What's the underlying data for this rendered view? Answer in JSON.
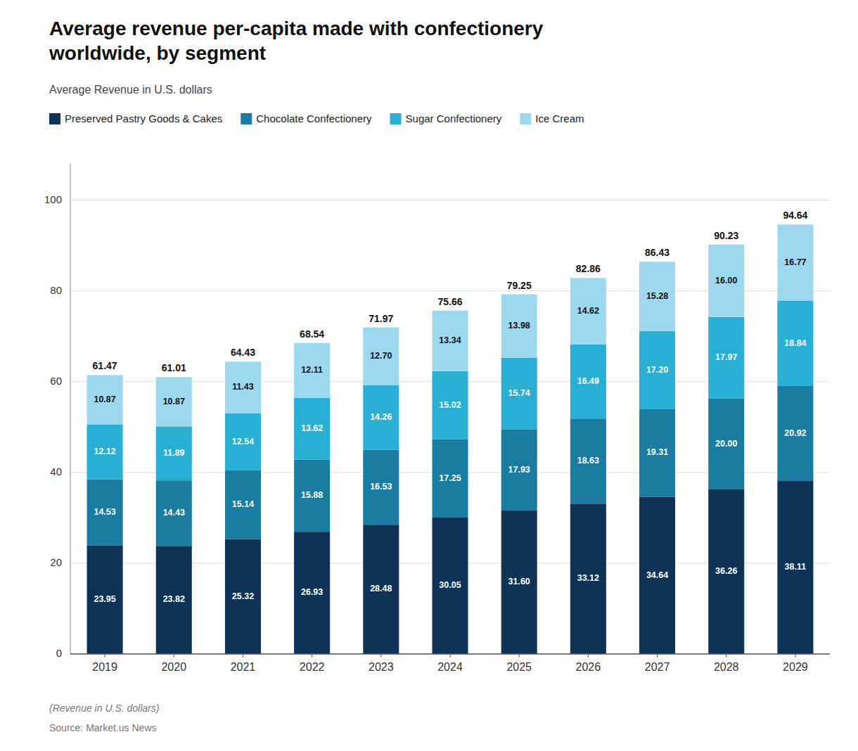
{
  "chart_data": {
    "type": "bar",
    "stacked": true,
    "data_labels": true,
    "grid": true,
    "legend": "upper left",
    "title": "Average revenue per-capita made with confectionery\nworldwide, by segment",
    "subtitle": "Average Revenue in U.S. dollars",
    "footnote": "(Revenue in U.S. dollars)",
    "source": "Source: Market.us News",
    "categories": [
      "2019",
      "2020",
      "2021",
      "2022",
      "2023",
      "2024",
      "2025",
      "2026",
      "2027",
      "2028",
      "2029"
    ],
    "series": [
      {
        "name": "Preserved Pastry Goods & Cakes",
        "color": "#0f3356",
        "values": [
          23.95,
          23.82,
          25.32,
          26.93,
          28.48,
          30.05,
          31.6,
          33.12,
          34.64,
          36.26,
          38.11
        ],
        "value_labels": [
          "23.95",
          "23.82",
          "25.32",
          "26.93",
          "28.48",
          "30.05",
          "31.60",
          "33.12",
          "34.64",
          "36.26",
          "38.11"
        ]
      },
      {
        "name": "Chocolate Confectionery",
        "color": "#1a7ca0",
        "values": [
          14.53,
          14.43,
          15.14,
          15.88,
          16.53,
          17.25,
          17.93,
          18.63,
          19.31,
          20.0,
          20.92
        ],
        "value_labels": [
          "14.53",
          "14.43",
          "15.14",
          "15.88",
          "16.53",
          "17.25",
          "17.93",
          "18.63",
          "19.31",
          "20.00",
          "20.92"
        ]
      },
      {
        "name": "Sugar Confectionery",
        "color": "#29aed4",
        "values": [
          12.12,
          11.89,
          12.54,
          13.62,
          14.26,
          15.02,
          15.74,
          16.49,
          17.2,
          17.97,
          18.84
        ],
        "value_labels": [
          "12.12",
          "11.89",
          "12.54",
          "13.62",
          "14.26",
          "15.02",
          "15.74",
          "16.49",
          "17.20",
          "17.97",
          "18.84"
        ]
      },
      {
        "name": "Ice Cream",
        "color": "#9ed8ef",
        "values": [
          10.87,
          10.87,
          11.43,
          12.11,
          12.7,
          13.34,
          13.98,
          14.62,
          15.28,
          16.0,
          16.77
        ],
        "value_labels": [
          "10.87",
          "10.87",
          "11.43",
          "12.11",
          "12.70",
          "13.34",
          "13.98",
          "14.62",
          "15.28",
          "16.00",
          "16.77"
        ]
      }
    ],
    "totals": [
      61.47,
      61.01,
      64.43,
      68.54,
      71.97,
      75.66,
      79.25,
      82.86,
      86.43,
      90.23,
      94.64
    ],
    "ylim": [
      0,
      108
    ],
    "yticks": [
      0,
      20,
      40,
      60,
      80,
      100
    ]
  }
}
